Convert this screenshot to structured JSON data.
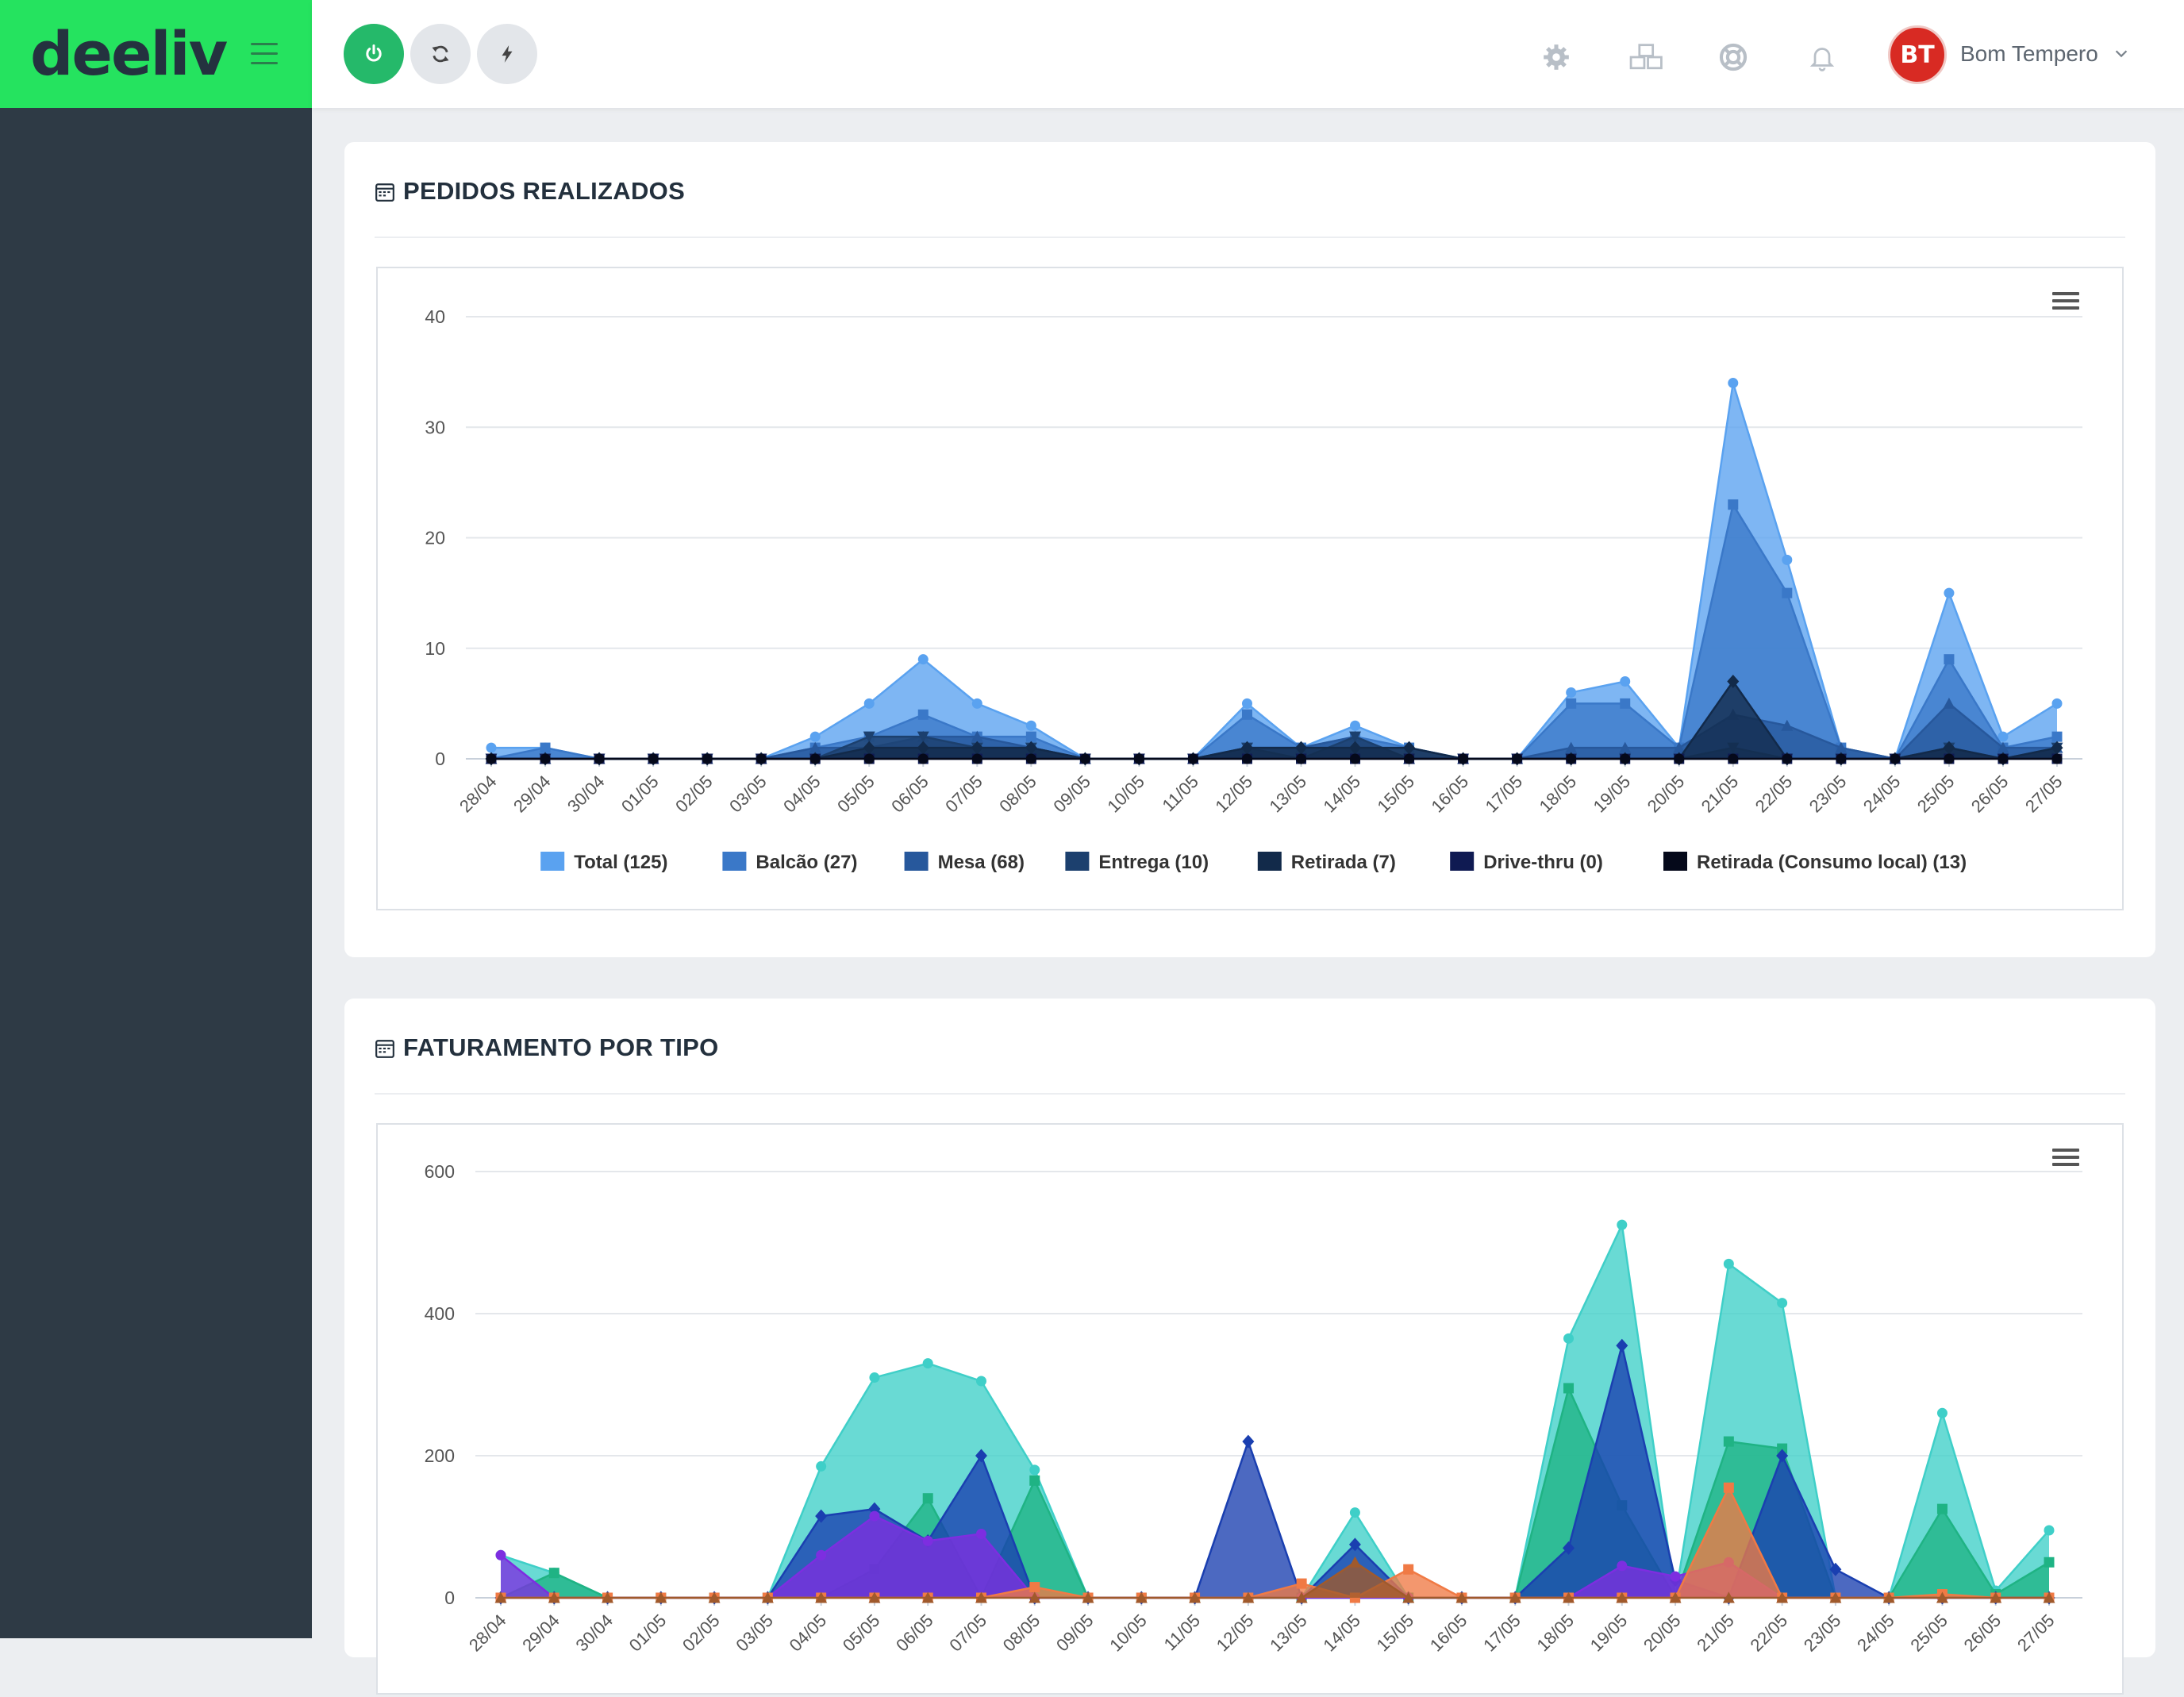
{
  "brand": {
    "logo_text": "deeliv",
    "color": "#25e35f"
  },
  "topbar": {
    "buttons": [
      "power-icon",
      "refresh-icon",
      "bolt-icon"
    ],
    "icons": [
      "gear-icon",
      "cubes-icon",
      "lifebuoy-icon",
      "bell-icon"
    ],
    "user": {
      "avatar_text": "BT",
      "name": "Bom Tempero"
    }
  },
  "cards": {
    "orders_title": "PEDIDOS REALIZADOS",
    "revenue_title": "FATURAMENTO POR TIPO"
  },
  "chart_data": [
    {
      "type": "area",
      "title": "PEDIDOS REALIZADOS",
      "ylim": [
        0,
        40
      ],
      "yticks": [
        0,
        10,
        20,
        30,
        40
      ],
      "grid": true,
      "legend": "bottom",
      "categories": [
        "28/04",
        "29/04",
        "30/04",
        "01/05",
        "02/05",
        "03/05",
        "04/05",
        "05/05",
        "06/05",
        "07/05",
        "08/05",
        "09/05",
        "10/05",
        "11/05",
        "12/05",
        "13/05",
        "14/05",
        "15/05",
        "16/05",
        "17/05",
        "18/05",
        "19/05",
        "20/05",
        "21/05",
        "22/05",
        "23/05",
        "24/05",
        "25/05",
        "26/05",
        "27/05"
      ],
      "series": [
        {
          "name": "Total (125)",
          "color": "#5aa2f0",
          "marker": "circle",
          "values": [
            1,
            1,
            0,
            0,
            0,
            0,
            2,
            5,
            9,
            5,
            3,
            0,
            0,
            0,
            5,
            1,
            3,
            1,
            0,
            0,
            6,
            7,
            1,
            34,
            18,
            1,
            0,
            15,
            2,
            5
          ]
        },
        {
          "name": "Balcão (27)",
          "color": "#3a78c8",
          "marker": "square",
          "values": [
            0,
            1,
            0,
            0,
            0,
            0,
            1,
            2,
            4,
            2,
            2,
            0,
            0,
            0,
            4,
            1,
            2,
            1,
            0,
            0,
            5,
            5,
            1,
            23,
            15,
            1,
            0,
            9,
            1,
            2
          ]
        },
        {
          "name": "Mesa (68)",
          "color": "#27589c",
          "marker": "triangle",
          "values": [
            0,
            0,
            0,
            0,
            0,
            0,
            1,
            1,
            2,
            2,
            1,
            0,
            0,
            0,
            1,
            1,
            2,
            0,
            0,
            0,
            1,
            1,
            1,
            4,
            3,
            1,
            0,
            5,
            1,
            1
          ]
        },
        {
          "name": "Entrega (10)",
          "color": "#1c406e",
          "marker": "triangle-down",
          "values": [
            0,
            0,
            0,
            0,
            0,
            0,
            0,
            2,
            2,
            1,
            1,
            0,
            0,
            0,
            1,
            0,
            2,
            0,
            0,
            0,
            0,
            0,
            0,
            1,
            0,
            0,
            0,
            1,
            0,
            1
          ]
        },
        {
          "name": "Retirada (7)",
          "color": "#122a4a",
          "marker": "diamond",
          "values": [
            0,
            0,
            0,
            0,
            0,
            0,
            0,
            1,
            1,
            1,
            1,
            0,
            0,
            0,
            1,
            1,
            1,
            1,
            0,
            0,
            0,
            0,
            0,
            7,
            0,
            0,
            0,
            1,
            0,
            1
          ]
        },
        {
          "name": "Drive-thru (0)",
          "color": "#0f1a52",
          "marker": "square",
          "values": [
            0,
            0,
            0,
            0,
            0,
            0,
            0,
            0,
            0,
            0,
            0,
            0,
            0,
            0,
            0,
            0,
            0,
            0,
            0,
            0,
            0,
            0,
            0,
            0,
            0,
            0,
            0,
            0,
            0,
            0
          ]
        },
        {
          "name": "Retirada (Consumo local) (13)",
          "color": "#05091a",
          "marker": "circle",
          "values": [
            0,
            0,
            0,
            0,
            0,
            0,
            0,
            0,
            0,
            0,
            0,
            0,
            0,
            0,
            0,
            0,
            0,
            0,
            0,
            0,
            0,
            0,
            0,
            0,
            0,
            0,
            0,
            0,
            0,
            0
          ]
        }
      ]
    },
    {
      "type": "area",
      "title": "FATURAMENTO POR TIPO",
      "ylim": [
        0,
        600
      ],
      "yticks": [
        0,
        200,
        400,
        600
      ],
      "grid": true,
      "categories": [
        "28/04",
        "29/04",
        "30/04",
        "01/05",
        "02/05",
        "03/05",
        "04/05",
        "05/05",
        "06/05",
        "07/05",
        "08/05",
        "09/05",
        "10/05",
        "11/05",
        "12/05",
        "13/05",
        "14/05",
        "15/05",
        "16/05",
        "17/05",
        "18/05",
        "19/05",
        "20/05",
        "21/05",
        "22/05",
        "23/05",
        "24/05",
        "25/05",
        "26/05",
        "27/05"
      ],
      "series": [
        {
          "color": "#3fcfc8",
          "marker": "circle",
          "values": [
            60,
            35,
            0,
            0,
            0,
            0,
            185,
            310,
            330,
            305,
            180,
            0,
            0,
            0,
            0,
            0,
            120,
            0,
            0,
            0,
            365,
            525,
            0,
            470,
            415,
            0,
            0,
            260,
            10,
            95
          ]
        },
        {
          "color": "#1fb384",
          "marker": "square",
          "values": [
            0,
            35,
            0,
            0,
            0,
            0,
            0,
            40,
            140,
            0,
            165,
            0,
            0,
            0,
            0,
            0,
            0,
            0,
            0,
            0,
            295,
            130,
            0,
            220,
            210,
            0,
            0,
            125,
            5,
            50
          ]
        },
        {
          "color": "#1a3fb0",
          "marker": "diamond",
          "values": [
            0,
            0,
            0,
            0,
            0,
            0,
            115,
            125,
            80,
            200,
            0,
            0,
            0,
            0,
            220,
            0,
            75,
            0,
            0,
            0,
            70,
            355,
            25,
            0,
            200,
            40,
            0,
            0,
            0,
            0
          ]
        },
        {
          "color": "#7d2ee0",
          "marker": "circle",
          "values": [
            60,
            0,
            0,
            0,
            0,
            0,
            60,
            115,
            80,
            90,
            0,
            0,
            0,
            0,
            0,
            0,
            0,
            0,
            0,
            0,
            0,
            45,
            30,
            50,
            0,
            0,
            0,
            0,
            0,
            0
          ]
        },
        {
          "color": "#f07a45",
          "marker": "square",
          "values": [
            0,
            0,
            0,
            0,
            0,
            0,
            0,
            0,
            0,
            0,
            15,
            0,
            0,
            0,
            0,
            20,
            0,
            40,
            0,
            0,
            0,
            0,
            0,
            155,
            0,
            0,
            0,
            5,
            0,
            0
          ]
        },
        {
          "color": "#a05a2c",
          "marker": "triangle",
          "values": [
            0,
            0,
            0,
            0,
            0,
            0,
            0,
            0,
            0,
            0,
            0,
            0,
            0,
            0,
            0,
            0,
            50,
            0,
            0,
            0,
            0,
            0,
            0,
            0,
            0,
            0,
            0,
            0,
            0,
            0
          ]
        }
      ]
    }
  ]
}
